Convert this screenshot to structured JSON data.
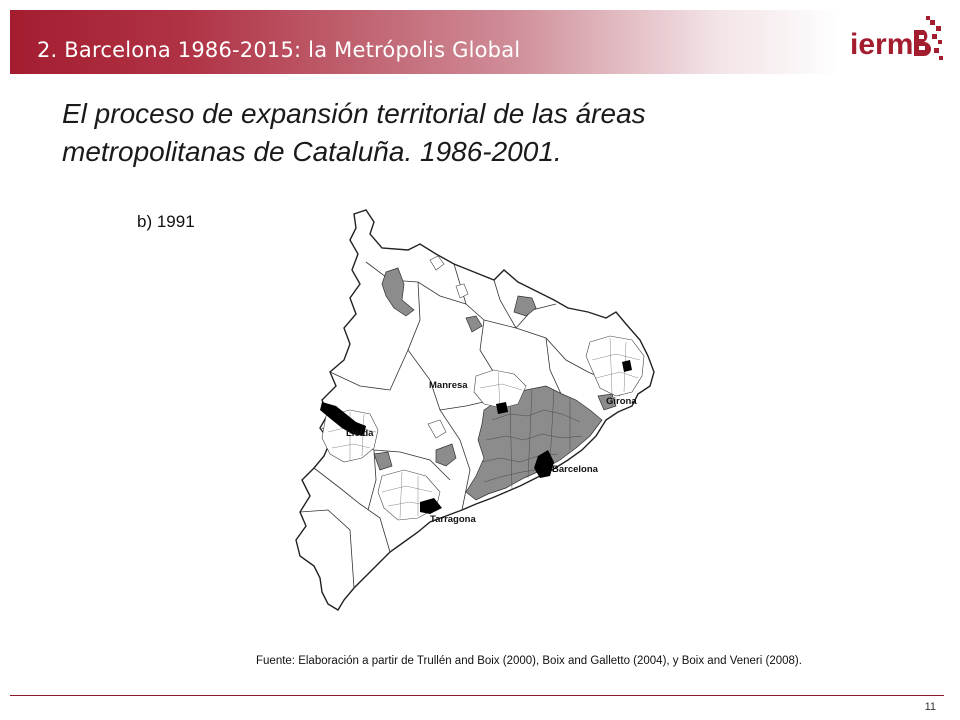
{
  "header": {
    "title": "2. Barcelona 1986-2015: la Metrópolis Global",
    "band_color": "#a31d2f",
    "logo_text": "iermB",
    "logo_color": "#a31d2f"
  },
  "slide": {
    "title": "El proceso de expansión territorial de las áreas metropolitanas de Cataluña. 1986-2001.",
    "panel_label": "b) 1991"
  },
  "map": {
    "labels": {
      "manresa": "Manresa",
      "lleida": "Lleida",
      "girona": "Girona",
      "barcelona": "Barcelona",
      "tarragona": "Tarragona"
    },
    "legend_colors": {
      "core": "#000000",
      "dark_grey_area": "#8c8c8c",
      "light_area": "#ffffff"
    }
  },
  "footer": {
    "source": "Fuente: Elaboración a partir de Trullén and Boix (2000), Boix and Galletto (2004), y Boix and Veneri (2008).",
    "page_number": "11"
  }
}
